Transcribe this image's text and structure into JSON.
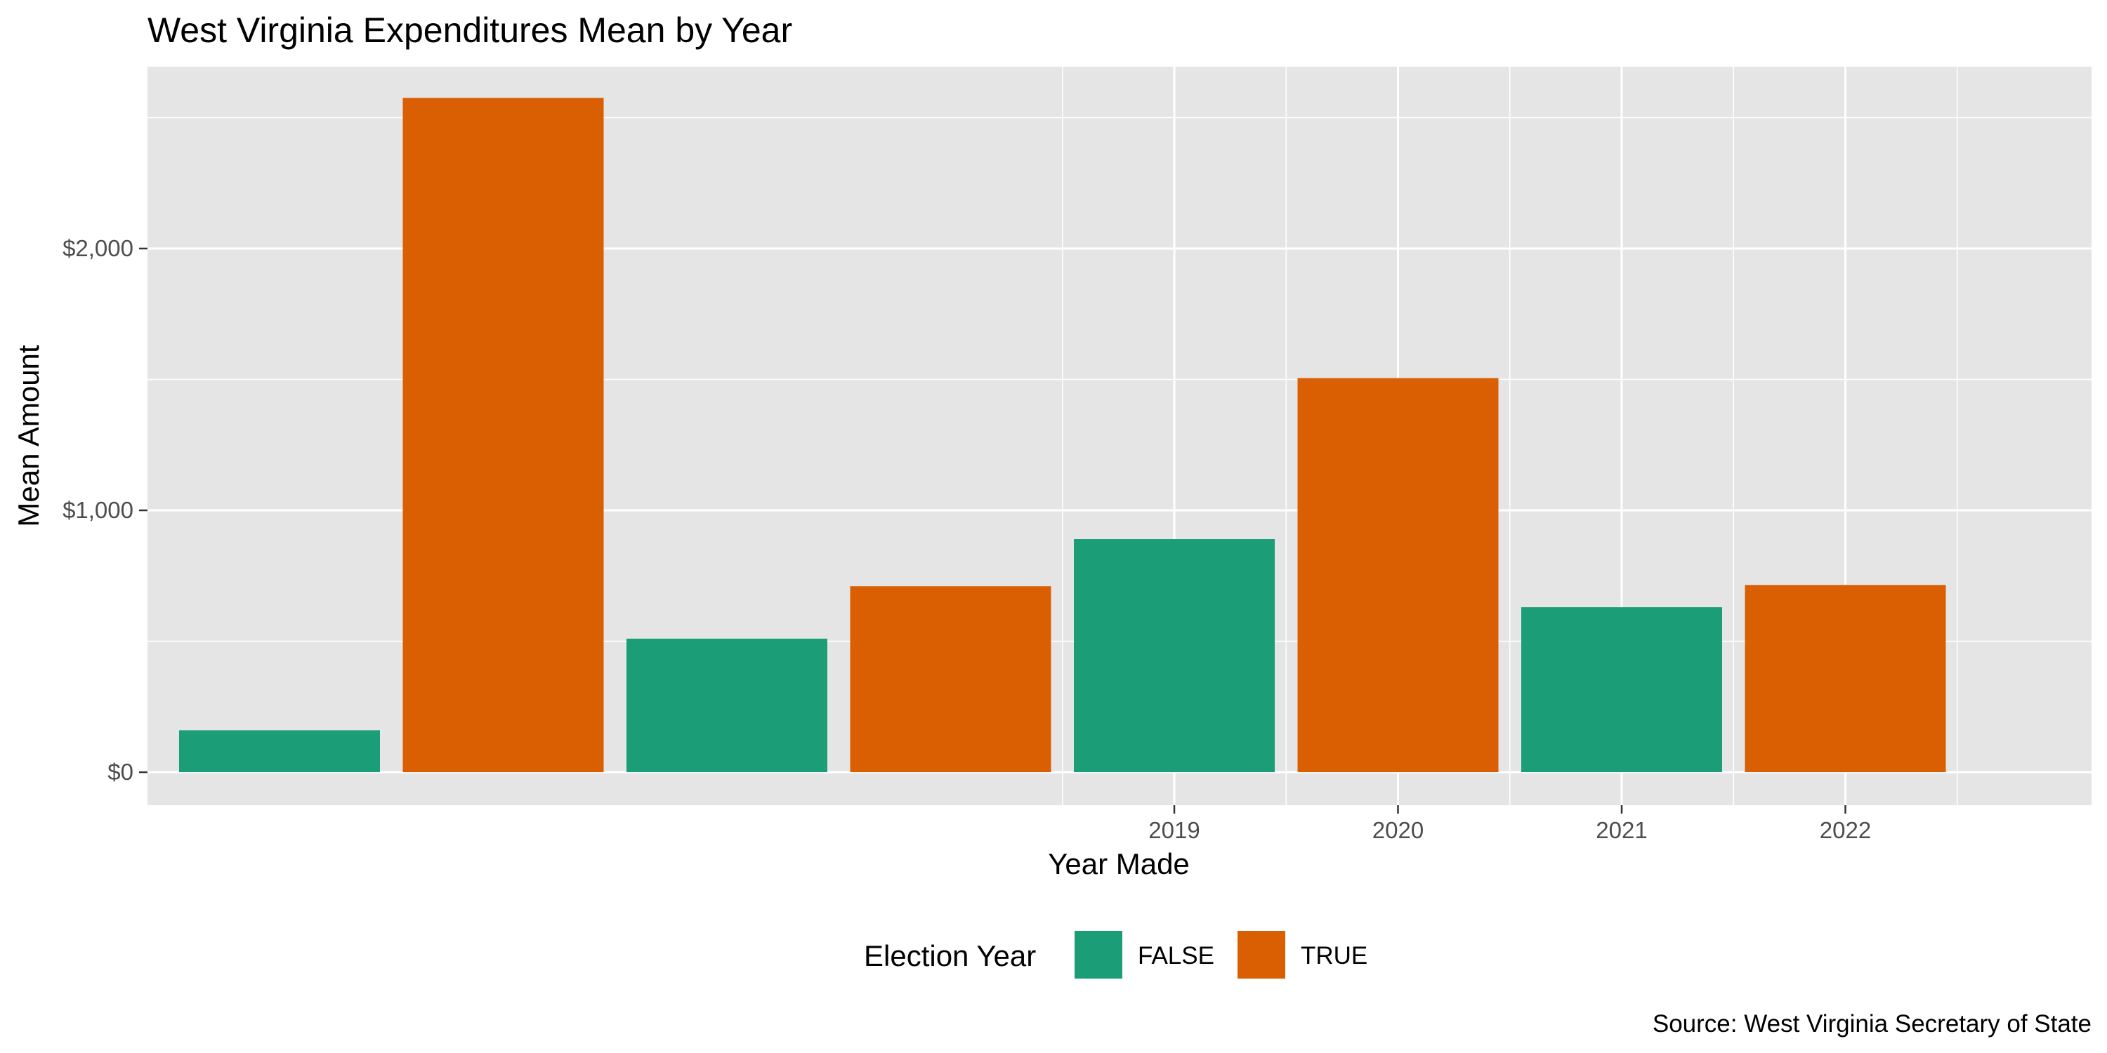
{
  "chart_data": {
    "type": "bar",
    "title": "West Virginia Expenditures Mean by Year",
    "xlabel": "Year Made",
    "ylabel": "Mean Amount",
    "caption": "Source: West Virginia Secretary of State",
    "ylim": [
      0,
      2700
    ],
    "y_ticks": [
      0,
      1000,
      2000
    ],
    "y_tick_labels": [
      "$0",
      "$1,000",
      "$2,000"
    ],
    "categories": [
      "",
      "",
      "",
      "",
      "2019",
      "2020",
      "2021",
      "2022"
    ],
    "values": [
      160,
      2575,
      510,
      710,
      890,
      1505,
      630,
      715
    ],
    "election_year": [
      "FALSE",
      "TRUE",
      "FALSE",
      "TRUE",
      "FALSE",
      "TRUE",
      "FALSE",
      "TRUE"
    ],
    "legend": {
      "title": "Election Year",
      "position": "bottom",
      "entries": [
        {
          "label": "FALSE",
          "color": "#1b9e77"
        },
        {
          "label": "TRUE",
          "color": "#d95f02"
        }
      ]
    },
    "grid": true,
    "panel_background": "#e5e5e5",
    "grid_color": "#ffffff"
  }
}
